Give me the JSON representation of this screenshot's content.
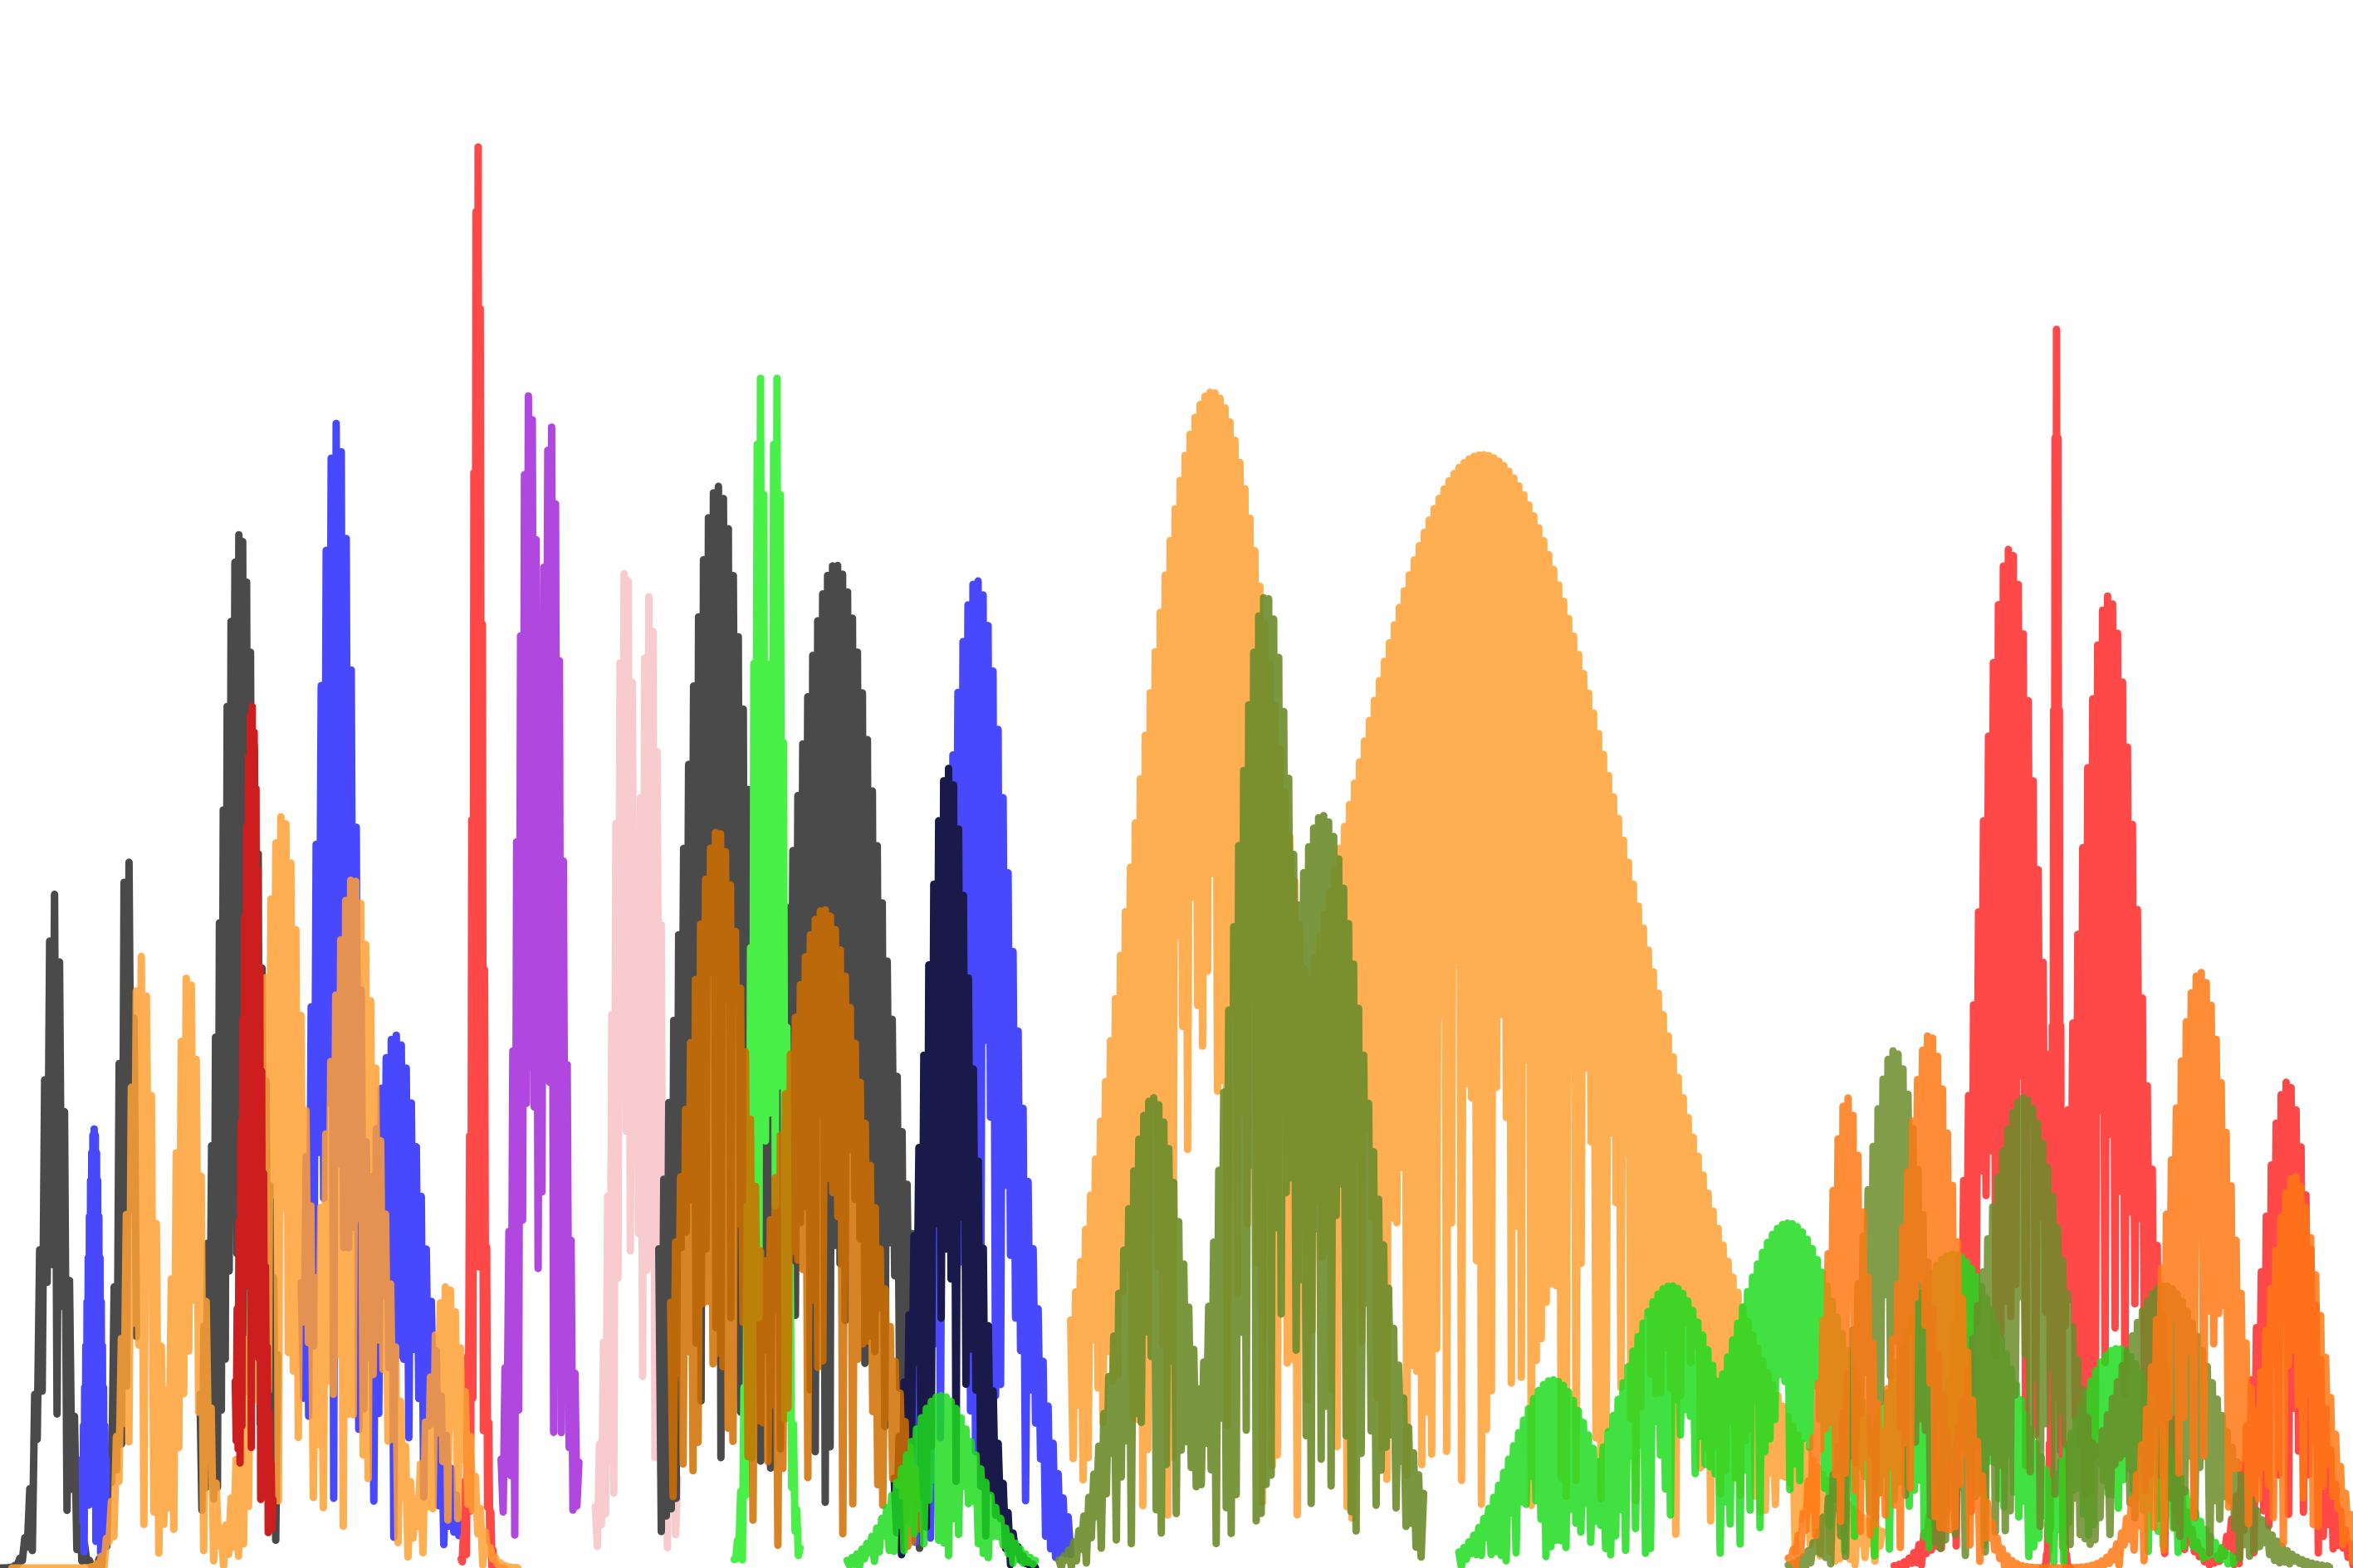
{
  "chart_data": {
    "type": "line",
    "title": "",
    "xlabel": "",
    "ylabel": "",
    "axes_visible": false,
    "grid": false,
    "legend": "none",
    "xlim": [
      0,
      100
    ],
    "ylim": [
      0,
      100
    ],
    "series": [
      {
        "color": "#4a4a4a",
        "alpha": 1.0,
        "x_range": [
          0,
          5.8
        ],
        "peaks": [
          {
            "x": 2.3,
            "y": 43,
            "w": 0.5
          },
          {
            "x": 5.4,
            "y": 46,
            "w": 0.4
          }
        ]
      },
      {
        "color": "#4a4a4a",
        "alpha": 1.0,
        "x_range": [
          8.5,
          11.8
        ],
        "peaks": [
          {
            "x": 10.2,
            "y": 66,
            "w": 0.9
          }
        ]
      },
      {
        "color": "#4848ff",
        "alpha": 1.0,
        "x_range": [
          3.5,
          4.5
        ],
        "peaks": [
          {
            "x": 4.0,
            "y": 28,
            "w": 0.3
          }
        ]
      },
      {
        "color": "#4848ff",
        "alpha": 1.0,
        "x_range": [
          12.8,
          19.5
        ],
        "peaks": [
          {
            "x": 14.3,
            "y": 73,
            "w": 0.9
          },
          {
            "x": 16.8,
            "y": 34,
            "w": 1.3
          }
        ]
      },
      {
        "color": "#ff4848",
        "alpha": 1.0,
        "x_range": [
          19.6,
          21.4
        ],
        "peaks": [
          {
            "x": 20.3,
            "y": 91,
            "w": 0.22
          }
        ]
      },
      {
        "color": "#b048e0",
        "alpha": 1.0,
        "x_range": [
          21.3,
          24.6
        ],
        "peaks": [
          {
            "x": 22.5,
            "y": 75,
            "w": 0.55
          },
          {
            "x": 23.4,
            "y": 73,
            "w": 0.55
          }
        ]
      },
      {
        "color": "#f8c8cc",
        "alpha": 0.95,
        "x_range": [
          25.3,
          28.8
        ],
        "peaks": [
          {
            "x": 26.6,
            "y": 64,
            "w": 0.55
          },
          {
            "x": 27.6,
            "y": 62,
            "w": 0.55
          }
        ]
      },
      {
        "color": "#4a4a4a",
        "alpha": 1.0,
        "x_range": [
          28.0,
          39.5
        ],
        "peaks": [
          {
            "x": 30.5,
            "y": 69,
            "w": 1.6
          },
          {
            "x": 35.5,
            "y": 64,
            "w": 2.2
          }
        ]
      },
      {
        "color": "#48f048",
        "alpha": 1.0,
        "x_range": [
          31.2,
          34.0
        ],
        "peaks": [
          {
            "x": 32.3,
            "y": 76,
            "w": 0.35
          },
          {
            "x": 33.0,
            "y": 76,
            "w": 0.35
          }
        ]
      },
      {
        "color": "#4848ff",
        "alpha": 1.0,
        "x_range": [
          38.8,
          45.5
        ],
        "peaks": [
          {
            "x": 41.5,
            "y": 63,
            "w": 1.6
          }
        ]
      },
      {
        "color": "#1a1a4a",
        "alpha": 1.0,
        "x_range": [
          38.0,
          44.0
        ],
        "peaks": [
          {
            "x": 40.3,
            "y": 51,
            "w": 1.1
          }
        ]
      },
      {
        "color": "#ffa032",
        "alpha": 0.85,
        "x_range": [
          45.5,
          80.0
        ],
        "peaks": [
          {
            "x": 51.5,
            "y": 75,
            "w": 3.4
          },
          {
            "x": 63.0,
            "y": 71,
            "w": 6.5
          }
        ]
      },
      {
        "color": "#ffa032",
        "alpha": 0.85,
        "x_range": [
          0.5,
          22.0
        ],
        "peaks": [
          {
            "x": 6.0,
            "y": 39,
            "w": 0.6
          },
          {
            "x": 8.0,
            "y": 38,
            "w": 0.6
          },
          {
            "x": 12.0,
            "y": 48,
            "w": 1.0
          },
          {
            "x": 15.0,
            "y": 44,
            "w": 1.2
          },
          {
            "x": 19.0,
            "y": 18,
            "w": 0.8
          }
        ]
      },
      {
        "color": "#d06e00",
        "alpha": 0.85,
        "x_range": [
          28.5,
          39.0
        ],
        "peaks": [
          {
            "x": 30.5,
            "y": 47,
            "w": 1.4
          },
          {
            "x": 35.0,
            "y": 42,
            "w": 2.0
          }
        ]
      },
      {
        "color": "#cc1e1e",
        "alpha": 1.0,
        "x_range": [
          10.0,
          11.6
        ],
        "peaks": [
          {
            "x": 10.7,
            "y": 55,
            "w": 0.4
          }
        ]
      },
      {
        "color": "#ff4848",
        "alpha": 1.0,
        "x_range": [
          80.5,
          94.0
        ],
        "peaks": [
          {
            "x": 85.4,
            "y": 65,
            "w": 1.4
          },
          {
            "x": 89.6,
            "y": 62,
            "w": 1.4
          }
        ]
      },
      {
        "color": "#ff4848",
        "alpha": 1.0,
        "x_range": [
          94.0,
          100.0
        ],
        "peaks": [
          {
            "x": 97.2,
            "y": 31,
            "w": 1.1
          }
        ]
      },
      {
        "color": "#ff4848",
        "alpha": 1.0,
        "x_range": [
          86.8,
          88.0
        ],
        "peaks": [
          {
            "x": 87.4,
            "y": 79,
            "w": 0.14
          }
        ]
      },
      {
        "color": "#6b8c2a",
        "alpha": 0.9,
        "x_range": [
          45.0,
          60.5
        ],
        "peaks": [
          {
            "x": 49.0,
            "y": 30,
            "w": 1.4
          },
          {
            "x": 53.8,
            "y": 62,
            "w": 1.5
          },
          {
            "x": 56.2,
            "y": 48,
            "w": 2.0
          }
        ]
      },
      {
        "color": "#1edc1e",
        "alpha": 0.85,
        "x_range": [
          36.0,
          44.0
        ],
        "peaks": [
          {
            "x": 40.0,
            "y": 11,
            "w": 1.6
          }
        ]
      },
      {
        "color": "#1edc1e",
        "alpha": 0.85,
        "x_range": [
          62.0,
          95.0
        ],
        "peaks": [
          {
            "x": 66.0,
            "y": 12,
            "w": 1.8
          },
          {
            "x": 71.0,
            "y": 18,
            "w": 2.2
          },
          {
            "x": 76.0,
            "y": 22,
            "w": 2.6
          },
          {
            "x": 83.0,
            "y": 20,
            "w": 2.6
          },
          {
            "x": 90.0,
            "y": 14,
            "w": 2.0
          }
        ]
      },
      {
        "color": "#6b8c2a",
        "alpha": 0.85,
        "x_range": [
          76.0,
          99.0
        ],
        "peaks": [
          {
            "x": 80.5,
            "y": 33,
            "w": 1.4
          },
          {
            "x": 86.0,
            "y": 30,
            "w": 1.8
          },
          {
            "x": 92.0,
            "y": 18,
            "w": 2.2
          }
        ]
      },
      {
        "color": "#ff7814",
        "alpha": 0.85,
        "x_range": [
          76.0,
          100.0
        ],
        "peaks": [
          {
            "x": 78.5,
            "y": 30,
            "w": 0.9
          },
          {
            "x": 82.0,
            "y": 34,
            "w": 1.2
          },
          {
            "x": 93.5,
            "y": 38,
            "w": 1.4
          },
          {
            "x": 97.5,
            "y": 25,
            "w": 1.2
          }
        ]
      }
    ]
  }
}
